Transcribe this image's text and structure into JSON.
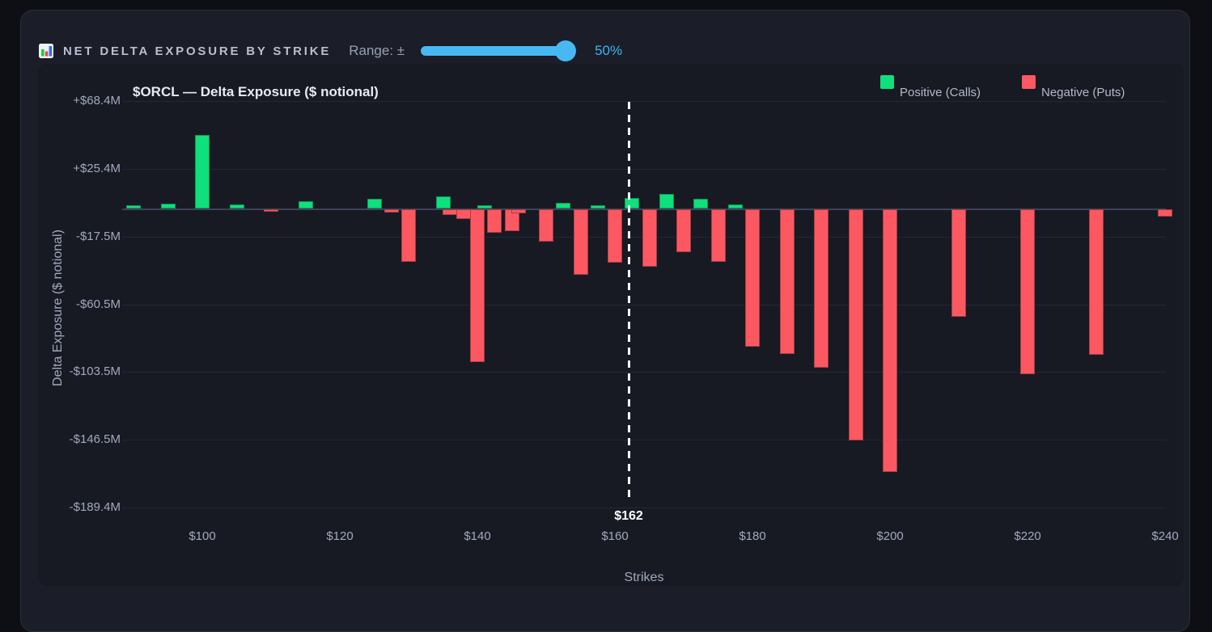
{
  "header": {
    "icon": "bar-chart",
    "title": "NET DELTA EXPOSURE BY STRIKE",
    "range_label": "Range: ±",
    "range_value": "50%"
  },
  "colors": {
    "positive": "#0ee07c",
    "negative": "#fc5862",
    "accent_blue": "#47b8f2",
    "page_bg": "#0d0f14",
    "card_bg": "#1b1e28",
    "panel_bg": "#171a23"
  },
  "chart_data": {
    "type": "bar",
    "title": "$ORCL — Delta Exposure ($ notional)",
    "xlabel": "Strikes",
    "ylabel": "Delta Exposure ($ notional)",
    "x_domain": [
      88.35,
      240.11
    ],
    "y_domain": [
      -189.4,
      68.4
    ],
    "grid": true,
    "legend_position": "top-right",
    "legend": [
      {
        "label": "Positive (Calls)",
        "color": "#0ee07c"
      },
      {
        "label": "Negative (Puts)",
        "color": "#fc5862"
      }
    ],
    "y_ticks": [
      {
        "value": 68.4,
        "label": "+$68.4M"
      },
      {
        "value": 25.4,
        "label": "+$25.4M"
      },
      {
        "value": -17.5,
        "label": "-$17.5M"
      },
      {
        "value": -60.5,
        "label": "-$60.5M"
      },
      {
        "value": -103.5,
        "label": "-$103.5M"
      },
      {
        "value": -146.5,
        "label": "-$146.5M"
      },
      {
        "value": -189.4,
        "label": "-$189.4M"
      }
    ],
    "x_ticks": [
      {
        "strike": 100,
        "label": "$100"
      },
      {
        "strike": 120,
        "label": "$120"
      },
      {
        "strike": 140,
        "label": "$140"
      },
      {
        "strike": 160,
        "label": "$160"
      },
      {
        "strike": 180,
        "label": "$180"
      },
      {
        "strike": 200,
        "label": "$200"
      },
      {
        "strike": 220,
        "label": "$220"
      },
      {
        "strike": 240,
        "label": "$240"
      }
    ],
    "reference_line": {
      "strike": 162,
      "label": "$162"
    },
    "series": [
      {
        "name": "Negative (Puts)",
        "color": "#fc5862",
        "points": [
          [
            110,
            -1.6
          ],
          [
            127.5,
            -2.1
          ],
          [
            130,
            -33.4
          ],
          [
            136,
            -3.8
          ],
          [
            138,
            -6.4
          ],
          [
            140,
            -97.0
          ],
          [
            142.5,
            -14.9
          ],
          [
            145,
            -14.1
          ],
          [
            146,
            -2.9
          ],
          [
            150,
            -20.9
          ],
          [
            155,
            -41.9
          ],
          [
            160,
            -34.0
          ],
          [
            165,
            -36.8
          ],
          [
            170,
            -27.4
          ],
          [
            175,
            -33.4
          ],
          [
            180,
            -87.2
          ],
          [
            185,
            -91.8
          ],
          [
            190,
            -100.9
          ],
          [
            195,
            -147.0
          ],
          [
            200,
            -167.0
          ],
          [
            210,
            -68.4
          ],
          [
            220,
            -104.7
          ],
          [
            230,
            -92.7
          ],
          [
            240,
            -4.7
          ]
        ]
      },
      {
        "name": "Positive (Calls)",
        "color": "#0ee07c",
        "points": [
          [
            90,
            2.2
          ],
          [
            95,
            3.2
          ],
          [
            100,
            47.0
          ],
          [
            105,
            2.7
          ],
          [
            115,
            4.8
          ],
          [
            125,
            6.5
          ],
          [
            135,
            7.8
          ],
          [
            141,
            2.5
          ],
          [
            152.5,
            3.9
          ],
          [
            157.5,
            2.5
          ],
          [
            162.5,
            7.0
          ],
          [
            167.5,
            9.4
          ],
          [
            172.5,
            6.5
          ],
          [
            177.5,
            3.0
          ]
        ]
      }
    ]
  }
}
